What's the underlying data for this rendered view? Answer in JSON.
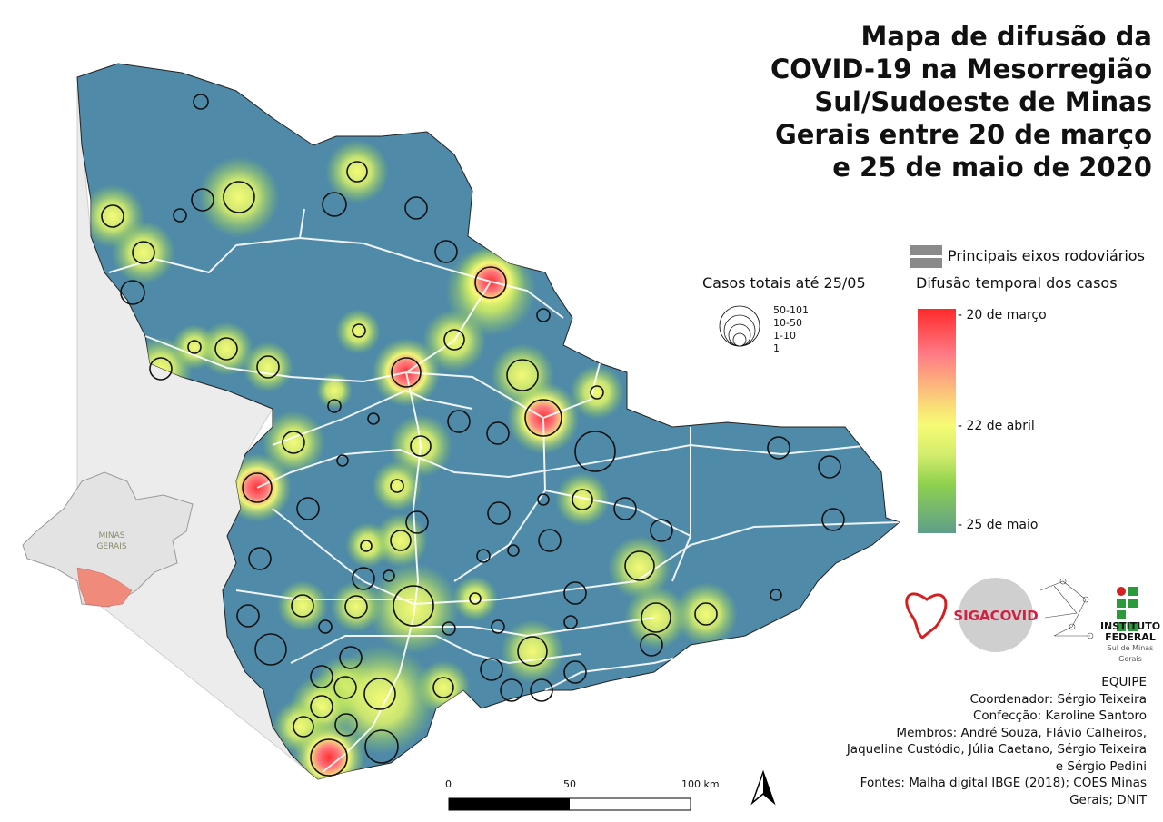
{
  "title": "Mapa de difusão da COVID-19 na Mesorregião Sul/Sudoeste de Minas Gerais entre 20 de março e 25 de maio de 2020",
  "inset": {
    "label": "MINAS GERAIS",
    "state_color": "#e3e3e3",
    "region_color": "#f08a7a"
  },
  "legend": {
    "roads_label": "Principais eixos rodoviários",
    "roads_color": "#8a8a8a",
    "cases_title": "Casos totais até 25/05",
    "cases_classes": [
      "50-101",
      "10-50",
      "1-10",
      "1"
    ],
    "diffusion_title": "Difusão temporal dos casos",
    "diffusion_ticks": [
      "20 de março",
      "22 de abril",
      "25 de maio"
    ],
    "diffusion_colors": {
      "early": "#ff2a2a",
      "middle": "#f6fb74",
      "late": "#5e9e8a"
    }
  },
  "map_colors": {
    "base": "#4f8aa8",
    "roads": "#ffffff"
  },
  "scale": {
    "labels": [
      "0",
      "50",
      "100 km"
    ]
  },
  "north_arrow": "north-arrow-icon",
  "logos": [
    "heart-logo",
    "SIGACOVID",
    "GIPLAN",
    "INSTITUTO FEDERAL Sul de Minas Gerais"
  ],
  "logo_text": {
    "siga": "SIGACOVID",
    "if1": "INSTITUTO",
    "if2": "FEDERAL",
    "if3": "Sul de Minas Gerais"
  },
  "credits": [
    "EQUIPE",
    "Coordenador: Sérgio Teixeira",
    "Confecção: Karoline Santoro",
    "Membros: André Souza, Flávio Calheiros,",
    "Jaqueline Custódio, Júlia Caetano, Sérgio Teixeira",
    "e Sérgio Pedini",
    "Fontes: Malha digital IBGE (2018); COES Minas",
    "Gerais; DNIT"
  ]
}
